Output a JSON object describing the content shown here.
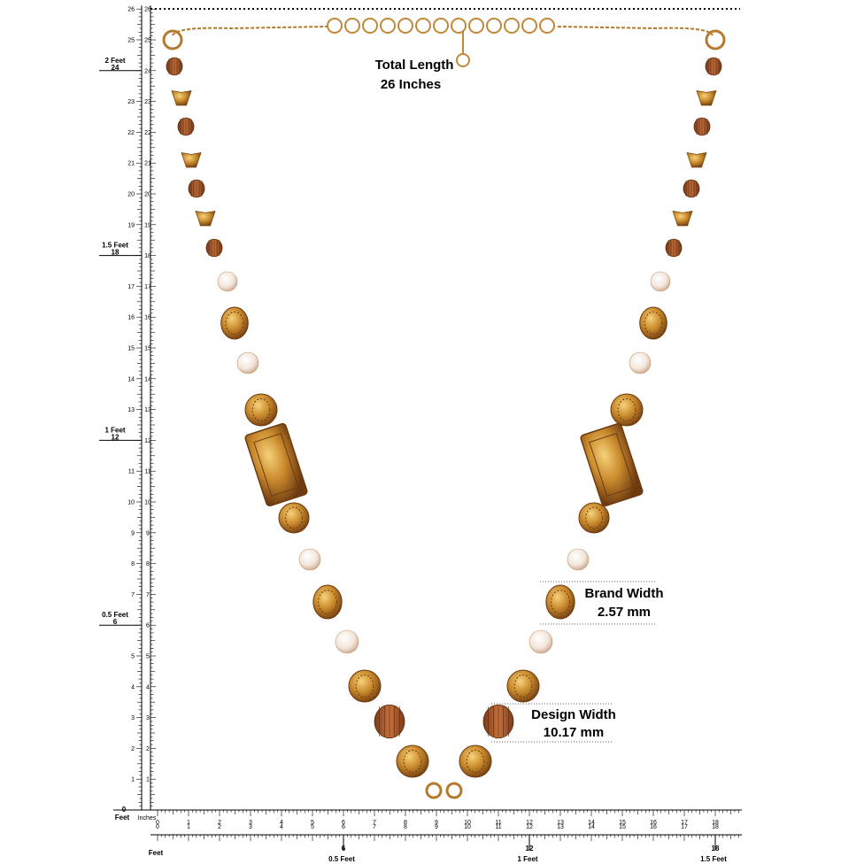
{
  "annotations": {
    "total_length": {
      "label": "Total Length",
      "value": "26 Inches"
    },
    "brand_width": {
      "label": "Brand Width",
      "value": "2.57 mm"
    },
    "design_width": {
      "label": "Design Width",
      "value": "10.17 mm"
    }
  },
  "vertical_ruler": {
    "inch_labels": [
      1,
      2,
      3,
      4,
      5,
      7,
      8,
      9,
      10,
      11,
      13,
      14,
      15,
      16,
      17,
      19,
      20,
      21,
      22,
      23,
      25,
      26
    ],
    "feet_marks": [
      {
        "label": "0.5 Feet",
        "inch": 6
      },
      {
        "label": "1 Feet",
        "inch": 12
      },
      {
        "label": "1.5 Feet",
        "inch": 18
      },
      {
        "label": "2 Feet",
        "inch": 24
      }
    ],
    "zero": 0,
    "zero_unit": "Feet",
    "unit": "Inches"
  },
  "horizontal_ruler": {
    "inch_labels": [
      0,
      1,
      2,
      3,
      4,
      5,
      6,
      7,
      8,
      9,
      10,
      11,
      12,
      13,
      14,
      15,
      16,
      17,
      18
    ],
    "feet_marks": [
      {
        "label": "0.5 Feet",
        "inch": 6
      },
      {
        "label": "1 Feet",
        "inch": 12
      },
      {
        "label": "1.5 Feet",
        "inch": 18
      }
    ],
    "unit": "Feet"
  }
}
